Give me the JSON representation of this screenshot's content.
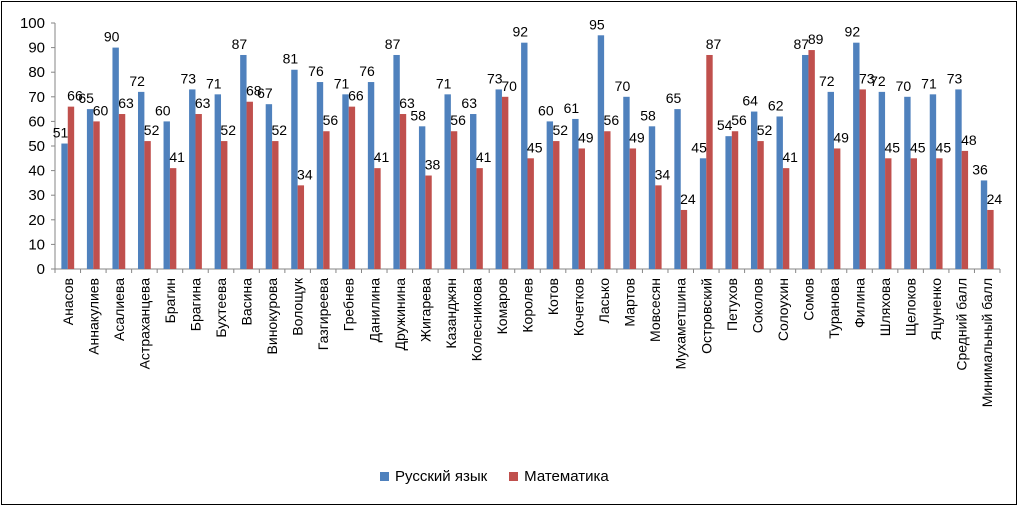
{
  "chart_data": {
    "type": "bar",
    "categories": [
      "Анасов",
      "Аннакулиев",
      "Асалиева",
      "Астраханцева",
      "Брагин",
      "Брагина",
      "Бухтеева",
      "Васина",
      "Винокурова",
      "Волощук",
      "Газгиреева",
      "Гребнев",
      "Данилина",
      "Дружинина",
      "Жигарева",
      "Казанджян",
      "Колесникова",
      "Комаров",
      "Королев",
      "Котов",
      "Кочетков",
      "Ласько",
      "Мартов",
      "Мовсесян",
      "Мухаметшина",
      "Островский",
      "Петухов",
      "Соколов",
      "Солоухин",
      "Сомов",
      "Туранова",
      "Филина",
      "Шляхова",
      "Щелоков",
      "Яцуненко",
      "Средний балл",
      "Минимальный балл"
    ],
    "series": [
      {
        "name": "Русский язык",
        "color": "#4F81BD",
        "values": [
          51,
          65,
          90,
          72,
          60,
          73,
          71,
          87,
          67,
          81,
          76,
          71,
          76,
          87,
          58,
          71,
          63,
          73,
          92,
          60,
          61,
          95,
          70,
          58,
          65,
          45,
          54,
          64,
          62,
          87,
          72,
          92,
          72,
          70,
          71,
          73,
          36
        ]
      },
      {
        "name": "Математика",
        "color": "#C0504D",
        "values": [
          66,
          60,
          63,
          52,
          41,
          63,
          52,
          68,
          52,
          34,
          56,
          66,
          41,
          63,
          38,
          56,
          41,
          70,
          45,
          52,
          49,
          56,
          49,
          34,
          24,
          87,
          56,
          52,
          41,
          89,
          49,
          73,
          45,
          45,
          45,
          48,
          24
        ]
      }
    ],
    "ylim": [
      0,
      100
    ],
    "yticks": [
      0,
      10,
      20,
      30,
      40,
      50,
      60,
      70,
      80,
      90,
      100
    ],
    "title": "",
    "xlabel": "",
    "ylabel": "",
    "grid": false,
    "legend_position": "bottom",
    "data_labels": true
  }
}
